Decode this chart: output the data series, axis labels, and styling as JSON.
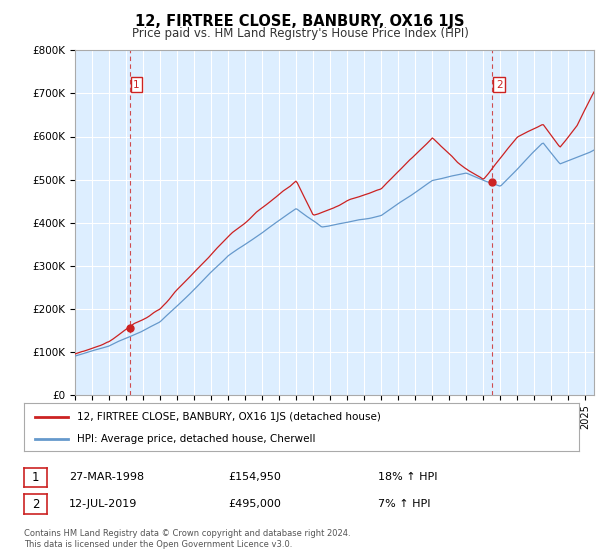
{
  "title": "12, FIRTREE CLOSE, BANBURY, OX16 1JS",
  "subtitle": "Price paid vs. HM Land Registry's House Price Index (HPI)",
  "legend_line1": "12, FIRTREE CLOSE, BANBURY, OX16 1JS (detached house)",
  "legend_line2": "HPI: Average price, detached house, Cherwell",
  "annotation1_date": "27-MAR-1998",
  "annotation1_price": "£154,950",
  "annotation1_hpi": "18% ↑ HPI",
  "annotation2_date": "12-JUL-2019",
  "annotation2_price": "£495,000",
  "annotation2_hpi": "7% ↑ HPI",
  "footer": "Contains HM Land Registry data © Crown copyright and database right 2024.\nThis data is licensed under the Open Government Licence v3.0.",
  "price_color": "#cc2222",
  "hpi_color": "#6699cc",
  "chart_bg": "#ddeeff",
  "background_color": "#ffffff",
  "grid_color": "#ffffff",
  "ylim": [
    0,
    800000
  ],
  "yticks": [
    0,
    100000,
    200000,
    300000,
    400000,
    500000,
    600000,
    700000,
    800000
  ],
  "ytick_labels": [
    "£0",
    "£100K",
    "£200K",
    "£300K",
    "£400K",
    "£500K",
    "£600K",
    "£700K",
    "£800K"
  ],
  "sale1_x": 1998.22,
  "sale1_y": 154950,
  "sale2_x": 2019.53,
  "sale2_y": 495000,
  "xmin": 1995.0,
  "xmax": 2025.5
}
